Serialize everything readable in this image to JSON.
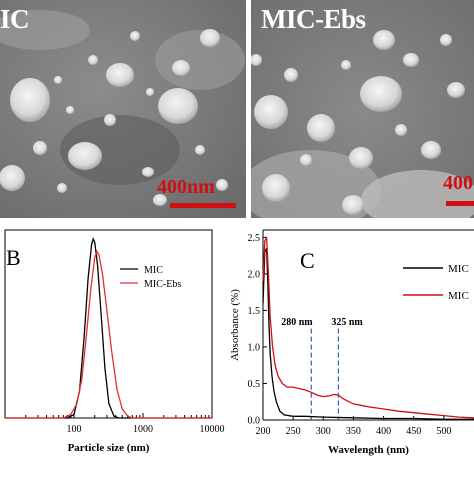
{
  "panel_mic": {
    "title": "IC",
    "scale_label": "400nm"
  },
  "panel_ebs": {
    "title": "MIC-Ebs",
    "scale_label": "400"
  },
  "chart_data": [
    {
      "type": "line",
      "panel_letter": "B",
      "xlabel": "Particle size (nm)",
      "ylabel": "",
      "xscale": "log",
      "xlim": [
        10,
        10000
      ],
      "ylim": [
        0,
        1.05
      ],
      "xticks": [
        "100",
        "1000",
        "10000"
      ],
      "legend_position": "top-right",
      "series": [
        {
          "name": "MIC",
          "color": "#000000",
          "x": [
            10,
            80,
            100,
            120,
            140,
            160,
            180,
            190,
            200,
            220,
            250,
            280,
            320,
            380,
            450,
            550,
            10000
          ],
          "y": [
            0,
            0,
            0.02,
            0.15,
            0.45,
            0.78,
            0.97,
            1.0,
            0.98,
            0.85,
            0.55,
            0.28,
            0.08,
            0.01,
            0,
            0,
            0
          ]
        },
        {
          "name": "MIC-Ebs",
          "color": "#e03030",
          "x": [
            10,
            70,
            90,
            110,
            130,
            150,
            175,
            200,
            215,
            230,
            260,
            300,
            350,
            420,
            500,
            600,
            700,
            10000
          ],
          "y": [
            0,
            0,
            0.02,
            0.08,
            0.22,
            0.45,
            0.72,
            0.9,
            0.93,
            0.91,
            0.8,
            0.6,
            0.38,
            0.16,
            0.05,
            0.01,
            0,
            0
          ]
        }
      ]
    },
    {
      "type": "line",
      "panel_letter": "C",
      "xlabel": "Wavelength (nm)",
      "ylabel": "Absorbance (%)",
      "xlim": [
        200,
        550
      ],
      "ylim": [
        0,
        2.6
      ],
      "xticks": [
        "200",
        "250",
        "300",
        "350",
        "400",
        "450",
        "500"
      ],
      "yticks": [
        "0.0",
        "0.5",
        "1.0",
        "1.5",
        "2.0",
        "2.5"
      ],
      "legend_position": "top-right",
      "annotations": [
        {
          "text": "280 nm",
          "x": 280
        },
        {
          "text": "325 nm",
          "x": 325
        }
      ],
      "series": [
        {
          "name": "MIC",
          "color": "#000000",
          "x": [
            200,
            203,
            206,
            208,
            210,
            212,
            215,
            218,
            222,
            228,
            235,
            250,
            270,
            300,
            350,
            400,
            450,
            500,
            550
          ],
          "y": [
            1.6,
            2.3,
            2.35,
            1.9,
            1.3,
            0.9,
            0.6,
            0.4,
            0.25,
            0.12,
            0.07,
            0.05,
            0.05,
            0.04,
            0.03,
            0.02,
            0.02,
            0.01,
            0.01
          ]
        },
        {
          "name": "MIC",
          "color": "#d01010",
          "x": [
            200,
            203,
            206,
            209,
            212,
            216,
            220,
            225,
            232,
            240,
            250,
            260,
            270,
            280,
            290,
            300,
            310,
            318,
            325,
            335,
            350,
            375,
            400,
            425,
            450,
            475,
            500,
            525,
            550
          ],
          "y": [
            1.9,
            2.45,
            2.5,
            2.0,
            1.4,
            1.0,
            0.75,
            0.6,
            0.5,
            0.45,
            0.45,
            0.43,
            0.41,
            0.38,
            0.34,
            0.32,
            0.33,
            0.35,
            0.34,
            0.28,
            0.22,
            0.18,
            0.15,
            0.12,
            0.1,
            0.08,
            0.06,
            0.04,
            0.03
          ]
        }
      ]
    }
  ]
}
